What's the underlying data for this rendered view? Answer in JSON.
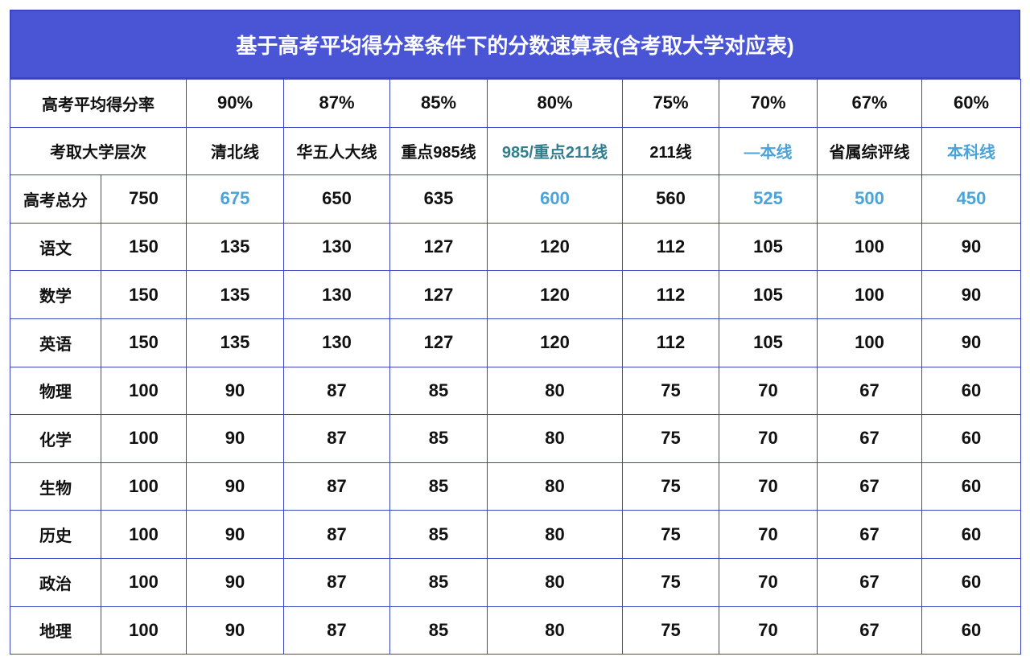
{
  "title": "基于高考平均得分率条件下的分数速算表(含考取大学对应表)",
  "rate_row": {
    "label": "高考平均得分率",
    "values": [
      "90%",
      "87%",
      "85%",
      "80%",
      "75%",
      "70%",
      "67%",
      "60%"
    ]
  },
  "level_row": {
    "label": "考取大学层次",
    "values": [
      "清北线",
      "华五人大线",
      "重点985线",
      "985/重点211线",
      "211线",
      "—本线",
      "省属综评线",
      "本科线"
    ]
  },
  "score_rows": [
    {
      "subject": "高考总分",
      "full": "750",
      "values": [
        "675",
        "650",
        "635",
        "600",
        "560",
        "525",
        "500",
        "450"
      ]
    },
    {
      "subject": "语文",
      "full": "150",
      "values": [
        "135",
        "130",
        "127",
        "120",
        "112",
        "105",
        "100",
        "90"
      ]
    },
    {
      "subject": "数学",
      "full": "150",
      "values": [
        "135",
        "130",
        "127",
        "120",
        "112",
        "105",
        "100",
        "90"
      ]
    },
    {
      "subject": "英语",
      "full": "150",
      "values": [
        "135",
        "130",
        "127",
        "120",
        "112",
        "105",
        "100",
        "90"
      ]
    },
    {
      "subject": "物理",
      "full": "100",
      "values": [
        "90",
        "87",
        "85",
        "80",
        "75",
        "70",
        "67",
        "60"
      ]
    },
    {
      "subject": "化学",
      "full": "100",
      "values": [
        "90",
        "87",
        "85",
        "80",
        "75",
        "70",
        "67",
        "60"
      ]
    },
    {
      "subject": "生物",
      "full": "100",
      "values": [
        "90",
        "87",
        "85",
        "80",
        "75",
        "70",
        "67",
        "60"
      ]
    },
    {
      "subject": "历史",
      "full": "100",
      "values": [
        "90",
        "87",
        "85",
        "80",
        "75",
        "70",
        "67",
        "60"
      ]
    },
    {
      "subject": "政治",
      "full": "100",
      "values": [
        "90",
        "87",
        "85",
        "80",
        "75",
        "70",
        "67",
        "60"
      ]
    },
    {
      "subject": "地理",
      "full": "100",
      "values": [
        "90",
        "87",
        "85",
        "80",
        "75",
        "70",
        "67",
        "60"
      ]
    }
  ],
  "colors": {
    "header_bg": "#4a55d6",
    "border": "#3b45c4",
    "highlight": "#4aa3d9"
  }
}
